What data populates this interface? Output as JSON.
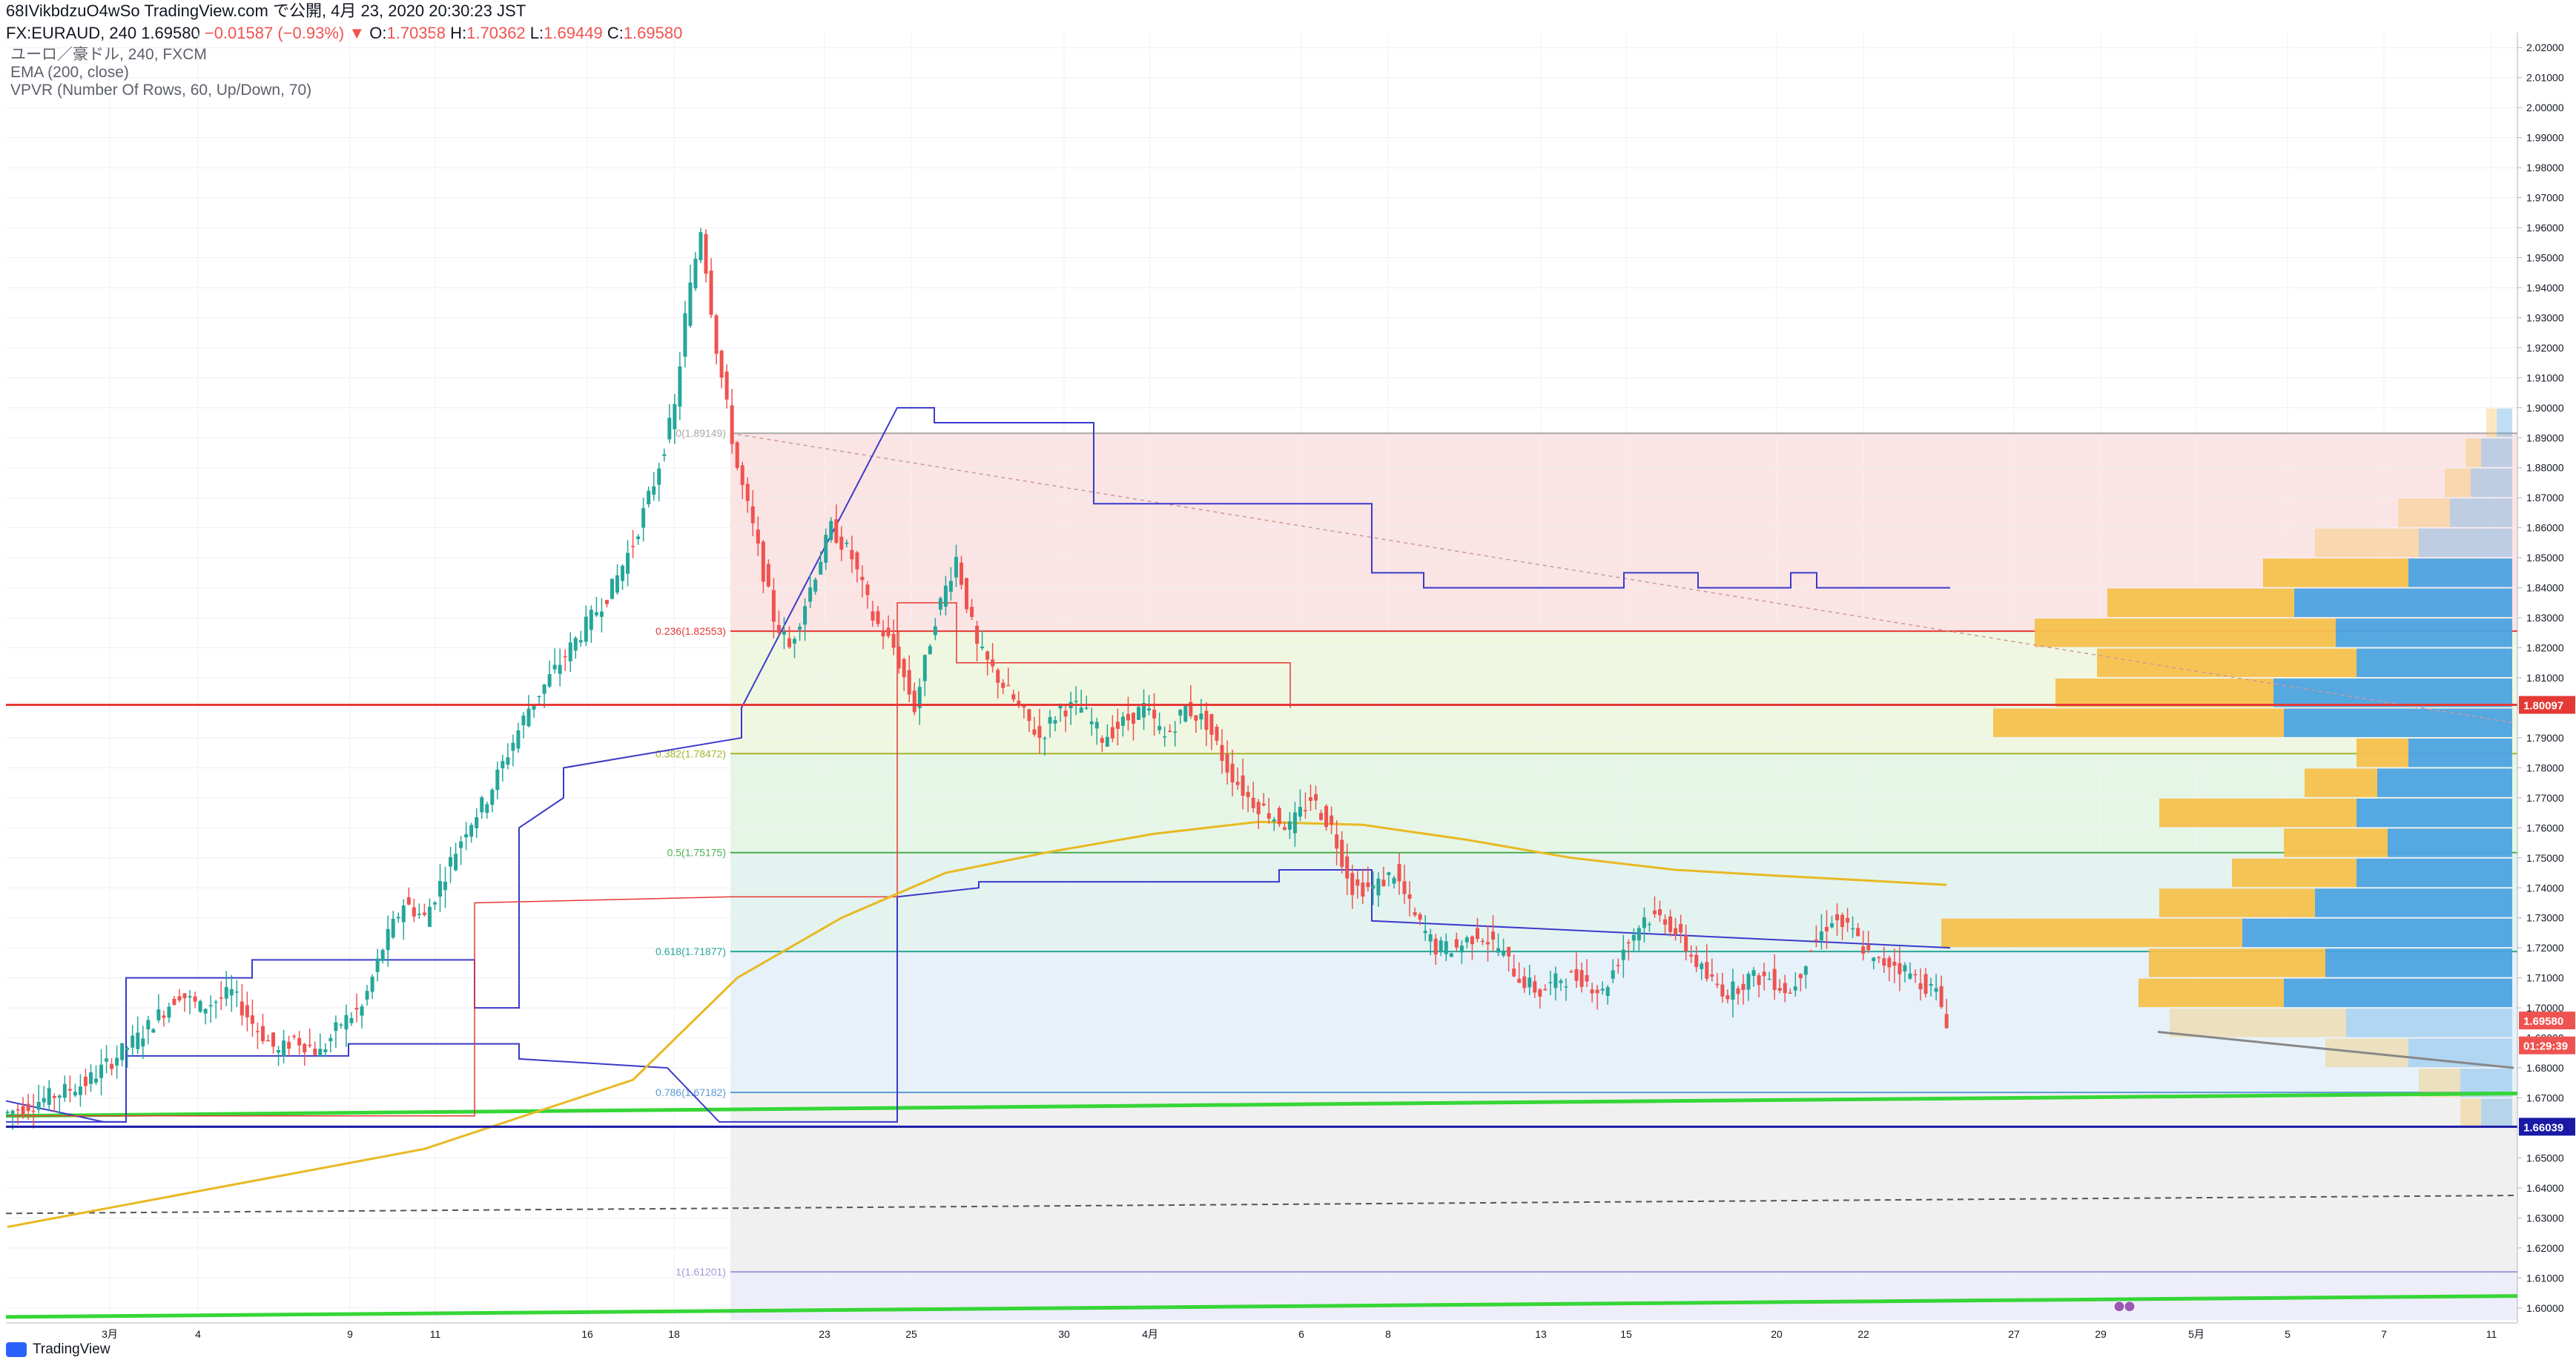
{
  "header": {
    "line1": "68IVikbdzuO4wSo TradingView.com で公開, 4月 23, 2020 20:30:23 JST",
    "symbol": "FX:EURAUD, 240",
    "last": "1.69580",
    "change": "−0.01587 (−0.93%)",
    "arrow": "▼",
    "o_label": "O:",
    "o": "1.70358",
    "h_label": "H:",
    "h": "1.70362",
    "l_label": "L:",
    "l": "1.69449",
    "c_label": "C:",
    "c": "1.69580"
  },
  "legend": {
    "symbol": "ユーロ／豪ドル, 240, FXCM",
    "ema": "EMA (200, close)",
    "vpvr": "VPVR (Number Of Rows, 60, Up/Down, 70)"
  },
  "footer": {
    "logo_text": "TradingView"
  },
  "colors": {
    "up": "#26a69a",
    "down": "#ef5350",
    "ema": "#e8b923",
    "vpvr_up": "#4da3e0",
    "vpvr_down": "#f5c14d",
    "blue_line": "#3a3acb",
    "green_line": "#36d636",
    "red_line": "#e53935"
  },
  "chart_data": {
    "type": "candlestick",
    "symbol": "FX:EURAUD",
    "timeframe": "240",
    "price_axis": {
      "min": 1.595,
      "max": 2.025,
      "ticks": [
        "2.02000",
        "2.01000",
        "2.00000",
        "1.99000",
        "1.98000",
        "1.97000",
        "1.96000",
        "1.95000",
        "1.94000",
        "1.93000",
        "1.92000",
        "1.91000",
        "1.90000",
        "1.89000",
        "1.88000",
        "1.87000",
        "1.86000",
        "1.85000",
        "1.84000",
        "1.83000",
        "1.82000",
        "1.81000",
        "1.80000",
        "1.79000",
        "1.78000",
        "1.77000",
        "1.76000",
        "1.75000",
        "1.74000",
        "1.73000",
        "1.72000",
        "1.71000",
        "1.70000",
        "1.69000",
        "1.68000",
        "1.67000",
        "1.66000",
        "1.65000",
        "1.64000",
        "1.63000",
        "1.62000",
        "1.61000",
        "1.60000"
      ]
    },
    "time_axis": {
      "labels": [
        "3月",
        "4",
        "9",
        "11",
        "16",
        "18",
        "23",
        "25",
        "30",
        "4月",
        "6",
        "8",
        "13",
        "15",
        "20",
        "22",
        "27",
        "29",
        "5月",
        "5",
        "7",
        "11"
      ]
    },
    "price_labels": [
      {
        "text": "1.80097",
        "value": 1.80097,
        "color": "#e53935"
      },
      {
        "text": "1.69580",
        "value": 1.6958,
        "color": "#ef5350"
      },
      {
        "text": "01:29:39",
        "value": 1.6875,
        "color": "#ef5350"
      },
      {
        "text": "1.66039",
        "value": 1.66039,
        "color": "#1a1aa6"
      }
    ],
    "fib_levels": [
      {
        "label": "0(1.89149)",
        "value": 1.89149,
        "color": "#a8a8a8"
      },
      {
        "label": "0.236(1.82553)",
        "value": 1.82553,
        "color": "#e53935"
      },
      {
        "label": "0.382(1.78472)",
        "value": 1.78472,
        "color": "#a5b32e"
      },
      {
        "label": "0.5(1.75175)",
        "value": 1.75175,
        "color": "#4caf50"
      },
      {
        "label": "0.618(1.71877)",
        "value": 1.71877,
        "color": "#26a69a"
      },
      {
        "label": "0.786(1.67182)",
        "value": 1.67182,
        "color": "#5b9bd5"
      },
      {
        "label": "1(1.61201)",
        "value": 1.61201,
        "color": "#9b9bd9"
      }
    ],
    "horizontal_lines": [
      {
        "value": 1.80097,
        "color": "#e53935"
      },
      {
        "value": 1.66039,
        "color": "#1a1aa6"
      }
    ],
    "price_series": [
      [
        0,
        1.665
      ],
      [
        15,
        1.675
      ],
      [
        25,
        1.69
      ],
      [
        33,
        1.705
      ],
      [
        37,
        1.7
      ],
      [
        43,
        1.705
      ],
      [
        47,
        1.695
      ],
      [
        52,
        1.685
      ],
      [
        55,
        1.69
      ],
      [
        60,
        1.685
      ],
      [
        64,
        1.695
      ],
      [
        68,
        1.7
      ],
      [
        72,
        1.72
      ],
      [
        76,
        1.735
      ],
      [
        80,
        1.73
      ],
      [
        84,
        1.745
      ],
      [
        88,
        1.76
      ],
      [
        92,
        1.77
      ],
      [
        96,
        1.785
      ],
      [
        100,
        1.8
      ],
      [
        104,
        1.81
      ],
      [
        108,
        1.82
      ],
      [
        112,
        1.83
      ],
      [
        116,
        1.84
      ],
      [
        120,
        1.855
      ],
      [
        124,
        1.875
      ],
      [
        128,
        1.9
      ],
      [
        130,
        1.93
      ],
      [
        133,
        1.96
      ],
      [
        136,
        1.92
      ],
      [
        140,
        1.88
      ],
      [
        143,
        1.86
      ],
      [
        147,
        1.83
      ],
      [
        150,
        1.82
      ],
      [
        154,
        1.84
      ],
      [
        158,
        1.86
      ],
      [
        162,
        1.85
      ],
      [
        166,
        1.83
      ],
      [
        170,
        1.82
      ],
      [
        174,
        1.8
      ],
      [
        178,
        1.83
      ],
      [
        182,
        1.85
      ],
      [
        186,
        1.82
      ],
      [
        190,
        1.81
      ],
      [
        194,
        1.8
      ],
      [
        198,
        1.79
      ],
      [
        202,
        1.8
      ],
      [
        206,
        1.8
      ],
      [
        210,
        1.79
      ],
      [
        214,
        1.795
      ],
      [
        218,
        1.8
      ],
      [
        222,
        1.79
      ],
      [
        226,
        1.8
      ],
      [
        230,
        1.795
      ],
      [
        234,
        1.78
      ],
      [
        238,
        1.77
      ],
      [
        242,
        1.765
      ],
      [
        246,
        1.76
      ],
      [
        250,
        1.77
      ],
      [
        254,
        1.76
      ],
      [
        258,
        1.74
      ],
      [
        262,
        1.74
      ],
      [
        266,
        1.745
      ],
      [
        270,
        1.73
      ],
      [
        274,
        1.72
      ],
      [
        278,
        1.72
      ],
      [
        282,
        1.725
      ],
      [
        286,
        1.72
      ],
      [
        290,
        1.71
      ],
      [
        294,
        1.705
      ],
      [
        298,
        1.71
      ],
      [
        302,
        1.71
      ],
      [
        306,
        1.705
      ],
      [
        310,
        1.72
      ],
      [
        314,
        1.73
      ],
      [
        318,
        1.73
      ],
      [
        322,
        1.72
      ],
      [
        326,
        1.71
      ],
      [
        330,
        1.705
      ],
      [
        334,
        1.71
      ],
      [
        338,
        1.71
      ],
      [
        342,
        1.705
      ],
      [
        346,
        1.72
      ],
      [
        350,
        1.73
      ],
      [
        354,
        1.725
      ],
      [
        358,
        1.715
      ],
      [
        362,
        1.715
      ],
      [
        366,
        1.71
      ],
      [
        370,
        1.705
      ],
      [
        372,
        1.6958
      ]
    ],
    "ema_200": [
      [
        0,
        1.627
      ],
      [
        40,
        1.64
      ],
      [
        80,
        1.653
      ],
      [
        120,
        1.676
      ],
      [
        140,
        1.71
      ],
      [
        160,
        1.73
      ],
      [
        180,
        1.745
      ],
      [
        200,
        1.752
      ],
      [
        220,
        1.758
      ],
      [
        240,
        1.762
      ],
      [
        260,
        1.761
      ],
      [
        280,
        1.756
      ],
      [
        300,
        1.75
      ],
      [
        320,
        1.746
      ],
      [
        340,
        1.744
      ],
      [
        372,
        1.741
      ]
    ],
    "vpvr": [
      {
        "price": 1.895,
        "up": 0.03,
        "down": 0.02
      },
      {
        "price": 1.885,
        "up": 0.06,
        "down": 0.03
      },
      {
        "price": 1.875,
        "up": 0.08,
        "down": 0.05
      },
      {
        "price": 1.865,
        "up": 0.12,
        "down": 0.1
      },
      {
        "price": 1.855,
        "up": 0.18,
        "down": 0.2
      },
      {
        "price": 1.845,
        "up": 0.2,
        "down": 0.28
      },
      {
        "price": 1.835,
        "up": 0.42,
        "down": 0.36
      },
      {
        "price": 1.825,
        "up": 0.34,
        "down": 0.58
      },
      {
        "price": 1.815,
        "up": 0.3,
        "down": 0.5
      },
      {
        "price": 1.805,
        "up": 0.46,
        "down": 0.42
      },
      {
        "price": 1.795,
        "up": 0.44,
        "down": 0.56
      },
      {
        "price": 1.785,
        "up": 0.2,
        "down": 0.1
      },
      {
        "price": 1.775,
        "up": 0.26,
        "down": 0.14
      },
      {
        "price": 1.765,
        "up": 0.3,
        "down": 0.38
      },
      {
        "price": 1.755,
        "up": 0.24,
        "down": 0.2
      },
      {
        "price": 1.745,
        "up": 0.3,
        "down": 0.24
      },
      {
        "price": 1.735,
        "up": 0.38,
        "down": 0.3
      },
      {
        "price": 1.725,
        "up": 0.52,
        "down": 0.58
      },
      {
        "price": 1.715,
        "up": 0.36,
        "down": 0.34
      },
      {
        "price": 1.705,
        "up": 0.44,
        "down": 0.28
      },
      {
        "price": 1.695,
        "up": 0.32,
        "down": 0.34
      },
      {
        "price": 1.685,
        "up": 0.2,
        "down": 0.16
      },
      {
        "price": 1.675,
        "up": 0.1,
        "down": 0.08
      },
      {
        "price": 1.665,
        "up": 0.06,
        "down": 0.04
      }
    ]
  }
}
